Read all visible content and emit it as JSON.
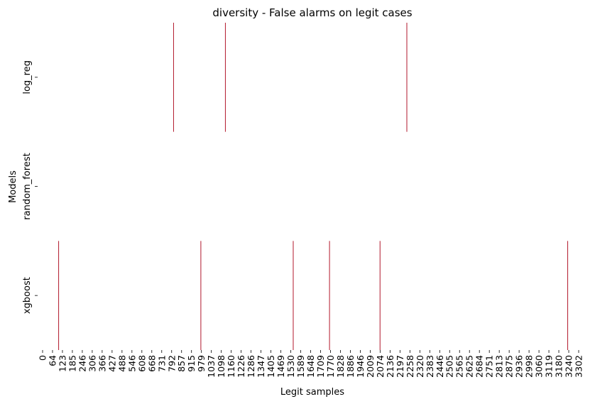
{
  "chart_data": {
    "type": "heatmap",
    "title": "diversity - False alarms on legit cases",
    "xlabel": "Legit samples",
    "ylabel": "Models",
    "rows": [
      "log_reg",
      "random_forest",
      "xgboost"
    ],
    "x_tick_labels": [
      "0",
      "64",
      "123",
      "185",
      "246",
      "306",
      "366",
      "427",
      "488",
      "546",
      "608",
      "668",
      "731",
      "792",
      "857",
      "915",
      "979",
      "1037",
      "1098",
      "1160",
      "1226",
      "1286",
      "1347",
      "1405",
      "1469",
      "1530",
      "1589",
      "1648",
      "1709",
      "1770",
      "1828",
      "1886",
      "1946",
      "2009",
      "2074",
      "2136",
      "2197",
      "2258",
      "2320",
      "2383",
      "2446",
      "2505",
      "2565",
      "2625",
      "2684",
      "2751",
      "2813",
      "2875",
      "2936",
      "2998",
      "3060",
      "3119",
      "3180",
      "3240",
      "3302"
    ],
    "n_samples": 3340,
    "alarm_color": "#b2182b",
    "background_color": "#ffffff",
    "grid": false,
    "colorbar": false,
    "false_alarms": [
      {
        "model": "log_reg",
        "samples": [
          831,
          1148,
          2258
        ]
      },
      {
        "model": "random_forest",
        "samples": []
      },
      {
        "model": "xgboost",
        "samples": [
          128,
          998,
          1563,
          1785,
          2094,
          3242
        ]
      }
    ]
  }
}
